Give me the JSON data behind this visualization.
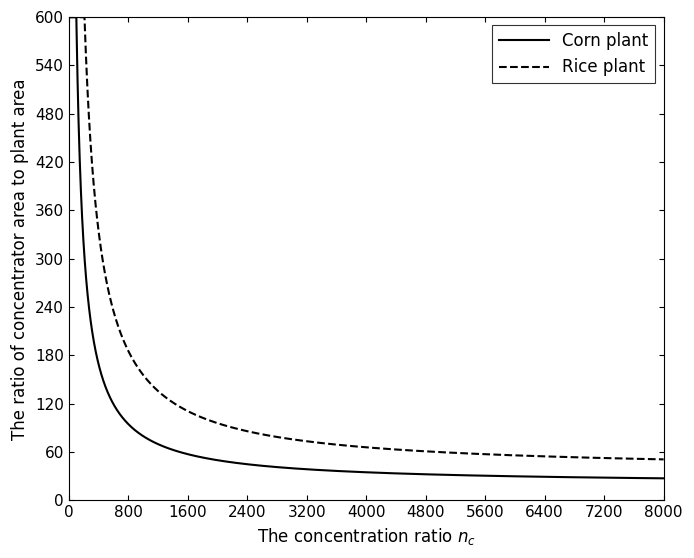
{
  "x_start": 1,
  "x_end": 8000,
  "x_ticks": [
    0,
    800,
    1600,
    2400,
    3200,
    4000,
    4800,
    5600,
    6400,
    7200,
    8000
  ],
  "y_ticks": [
    0,
    60,
    120,
    180,
    240,
    300,
    360,
    420,
    480,
    540,
    600
  ],
  "ylim": [
    0,
    600
  ],
  "xlim": [
    0,
    8000
  ],
  "xlabel": "The concentration ratio $n_c$",
  "ylabel": "The ratio of concentrator area to plant area",
  "corn_label": "Corn plant",
  "rice_label": "Rice plant",
  "corn_A": 60000.0,
  "corn_B": 20.0,
  "rice_A": 120000.0,
  "rice_B": 36.0,
  "line_color": "#000000",
  "background_color": "#ffffff",
  "label_fontsize": 12,
  "tick_fontsize": 11
}
